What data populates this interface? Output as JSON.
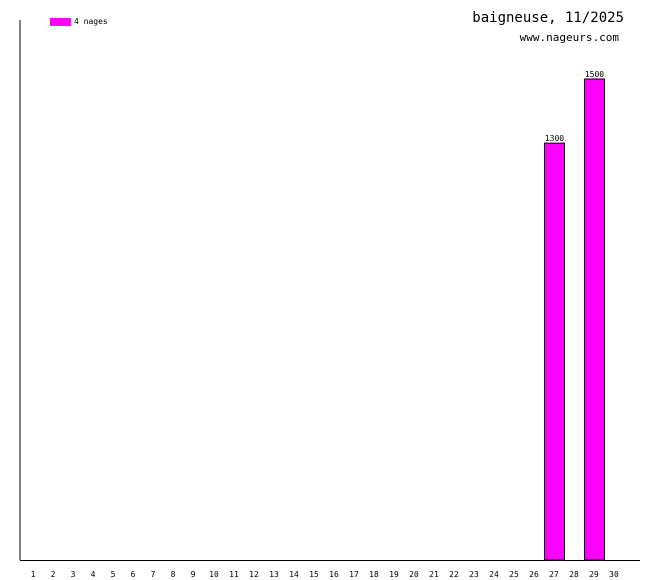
{
  "header": {
    "title": "baigneuse, 11/2025",
    "site": "www.nageurs.com"
  },
  "colors": {
    "bar": "#ff00ff",
    "bar_border": "#000000",
    "axis": "#000000"
  },
  "chart_data": {
    "type": "bar",
    "categories": [
      "1",
      "2",
      "3",
      "4",
      "5",
      "6",
      "7",
      "8",
      "9",
      "10",
      "11",
      "12",
      "13",
      "14",
      "15",
      "16",
      "17",
      "18",
      "19",
      "20",
      "21",
      "22",
      "23",
      "24",
      "25",
      "26",
      "27",
      "28",
      "29",
      "30"
    ],
    "series": [
      {
        "name": "4 nages",
        "values": [
          null,
          null,
          null,
          null,
          null,
          null,
          null,
          null,
          null,
          null,
          null,
          null,
          null,
          null,
          null,
          null,
          null,
          null,
          null,
          null,
          null,
          null,
          null,
          null,
          null,
          null,
          1300,
          null,
          1500,
          null
        ]
      }
    ],
    "data_labels": [
      "",
      "",
      "",
      "",
      "",
      "",
      "",
      "",
      "",
      "",
      "",
      "",
      "",
      "",
      "",
      "",
      "",
      "",
      "",
      "",
      "",
      "",
      "",
      "",
      "",
      "",
      "1300",
      "",
      "1500",
      ""
    ],
    "ylim": [
      0,
      1600
    ],
    "grid": false,
    "legend_position": "top-left"
  }
}
